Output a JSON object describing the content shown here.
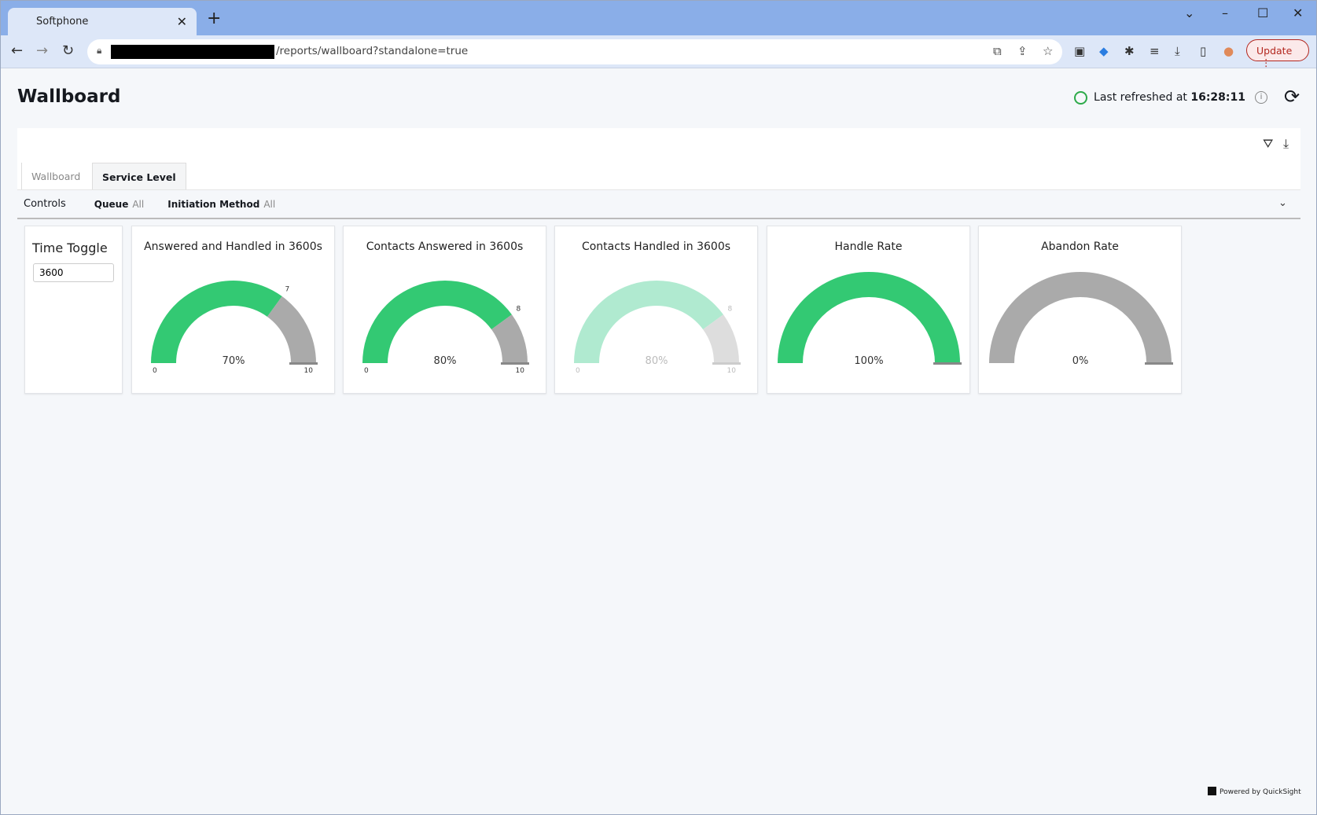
{
  "browser": {
    "tab_title": "Softphone",
    "url_suffix": "/reports/wallboard?standalone=true",
    "update_label": "Update"
  },
  "header": {
    "title": "Wallboard",
    "refreshed_prefix": "Last refreshed at",
    "refreshed_time": "16:28:11"
  },
  "sheets": [
    {
      "label": "Wallboard",
      "active": false
    },
    {
      "label": "Service Level",
      "active": true
    }
  ],
  "controls": {
    "label": "Controls",
    "queue_label": "Queue",
    "queue_value": "All",
    "initiation_label": "Initiation Method",
    "initiation_value": "All"
  },
  "time_toggle": {
    "title": "Time Toggle",
    "value": "3600"
  },
  "colors": {
    "green": "#33c973",
    "gray": "#aaaaaa",
    "faded_green": "#b0ead0",
    "faded_gray": "#dddddd"
  },
  "gauges": [
    {
      "title": "Answered and Handled in 3600s",
      "value": 7,
      "max": 10,
      "value_label": "7",
      "percent_label": "70%",
      "min_label": "0",
      "max_label": "10",
      "faded": false
    },
    {
      "title": "Contacts Answered in 3600s",
      "value": 8,
      "max": 10,
      "value_label": "8",
      "percent_label": "80%",
      "min_label": "0",
      "max_label": "10",
      "faded": false
    },
    {
      "title": "Contacts Handled in 3600s",
      "value": 8,
      "max": 10,
      "value_label": "8",
      "percent_label": "80%",
      "min_label": "0",
      "max_label": "10",
      "faded": true
    },
    {
      "title": "Handle Rate",
      "value": 100,
      "max": 100,
      "percent_label": "100%",
      "faded": false
    },
    {
      "title": "Abandon Rate",
      "value": 0,
      "max": 100,
      "percent_label": "0%",
      "faded": false
    }
  ],
  "footer": "Powered by QuickSight"
}
